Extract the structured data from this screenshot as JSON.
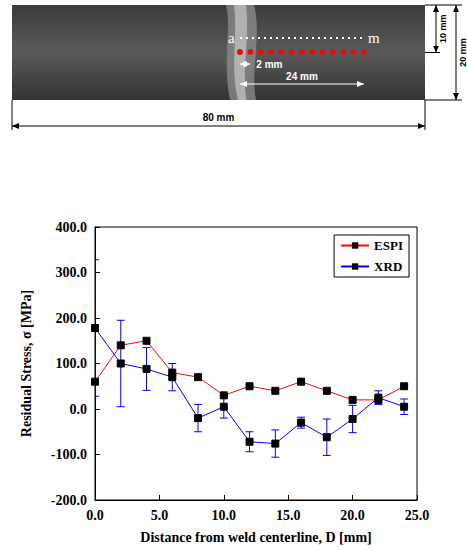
{
  "specimen": {
    "start_label": "a",
    "end_label": "m",
    "spacing": "2 mm",
    "span": "24 mm",
    "length": "80 mm",
    "half_width": "10 mm",
    "width": "20 mm"
  },
  "chart_data": {
    "type": "line",
    "x_label": "Distance from weld centerline, D [mm]",
    "y_label": "Residual Stress, σ [MPa]",
    "xlim": [
      0,
      25
    ],
    "xticks": [
      {
        "value": 0,
        "label": "0.0"
      },
      {
        "value": 5,
        "label": "5.0"
      },
      {
        "value": 10,
        "label": "10.0"
      },
      {
        "value": 15,
        "label": "15.0"
      },
      {
        "value": 20,
        "label": "20.0"
      },
      {
        "value": 25,
        "label": "25.0"
      }
    ],
    "ylim": [
      -200,
      400
    ],
    "yticks": [
      {
        "value": -200,
        "label": "-200.0"
      },
      {
        "value": -100,
        "label": "-100.0"
      },
      {
        "value": 0,
        "label": "0.0"
      },
      {
        "value": 100,
        "label": "100.0"
      },
      {
        "value": 200,
        "label": "200.0"
      },
      {
        "value": 300,
        "label": "300.0"
      },
      {
        "value": 400,
        "label": "400.0"
      }
    ],
    "legend": "top-right",
    "grid": false,
    "series": [
      {
        "name": "ESPI",
        "color": "#ff0000",
        "marker": "square",
        "x": [
          0,
          2,
          4,
          6,
          8,
          10,
          12,
          14,
          16,
          18,
          20,
          22,
          24
        ],
        "values": [
          60,
          140,
          150,
          80,
          70,
          30,
          50,
          40,
          60,
          40,
          20,
          20,
          50
        ]
      },
      {
        "name": "XRD",
        "color": "#0000ff",
        "marker": "square",
        "x": [
          0,
          2,
          4,
          6,
          8,
          10,
          12,
          14,
          16,
          18,
          20,
          22,
          24
        ],
        "values": [
          178,
          100,
          88,
          70,
          -20,
          5,
          -72,
          -76,
          -30,
          -62,
          -22,
          25,
          5
        ],
        "error": [
          150,
          95,
          47,
          30,
          30,
          25,
          22,
          30,
          12,
          40,
          30,
          15,
          17
        ]
      }
    ]
  }
}
